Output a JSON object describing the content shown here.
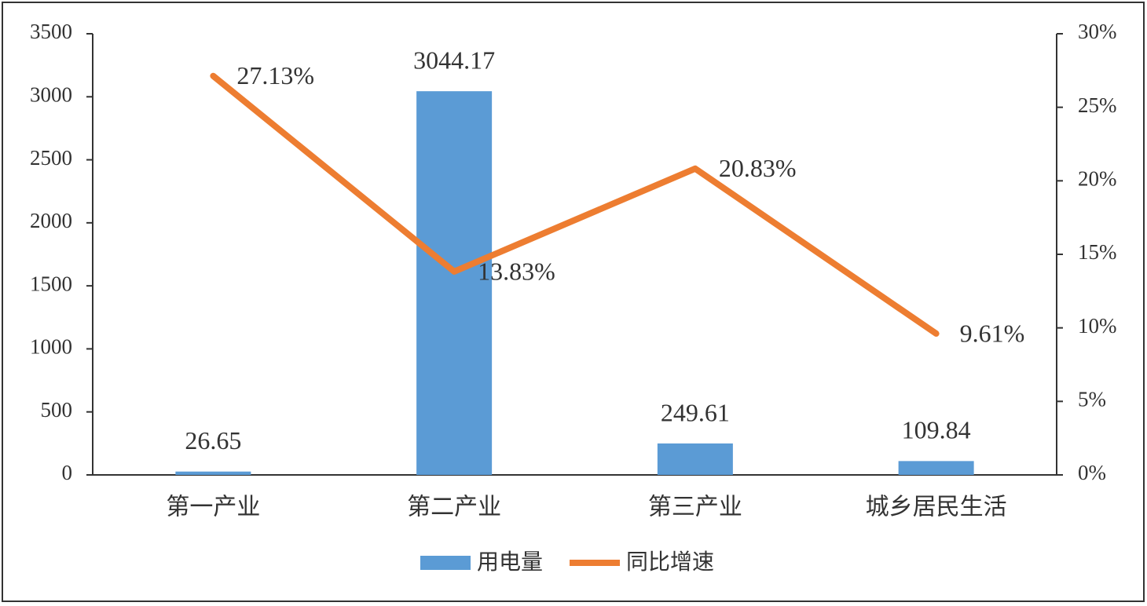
{
  "chart_data": {
    "type": "combo",
    "categories": [
      "第一产业",
      "第二产业",
      "第三产业",
      "城乡居民生活"
    ],
    "series": [
      {
        "name": "用电量",
        "type": "bar",
        "color": "#5b9bd5",
        "values": [
          26.65,
          3044.17,
          249.61,
          109.84
        ]
      },
      {
        "name": "同比增速",
        "type": "line",
        "axis": "y2",
        "color": "#ed7d31",
        "values": [
          27.13,
          13.83,
          20.83,
          9.61
        ],
        "value_labels": [
          "27.13%",
          "13.83%",
          "20.83%",
          "9.61%"
        ]
      }
    ],
    "ylim": [
      0,
      3500
    ],
    "yticks": [
      0,
      500,
      1000,
      1500,
      2000,
      2500,
      3000,
      3500
    ],
    "y2lim": [
      0,
      30
    ],
    "y2ticks": [
      {
        "value": 0,
        "label": "0%"
      },
      {
        "value": 5,
        "label": "5%"
      },
      {
        "value": 10,
        "label": "10%"
      },
      {
        "value": 15,
        "label": "15%"
      },
      {
        "value": 20,
        "label": "20%"
      },
      {
        "value": 25,
        "label": "25%"
      },
      {
        "value": 30,
        "label": "30%"
      }
    ],
    "legend": "bottom"
  }
}
